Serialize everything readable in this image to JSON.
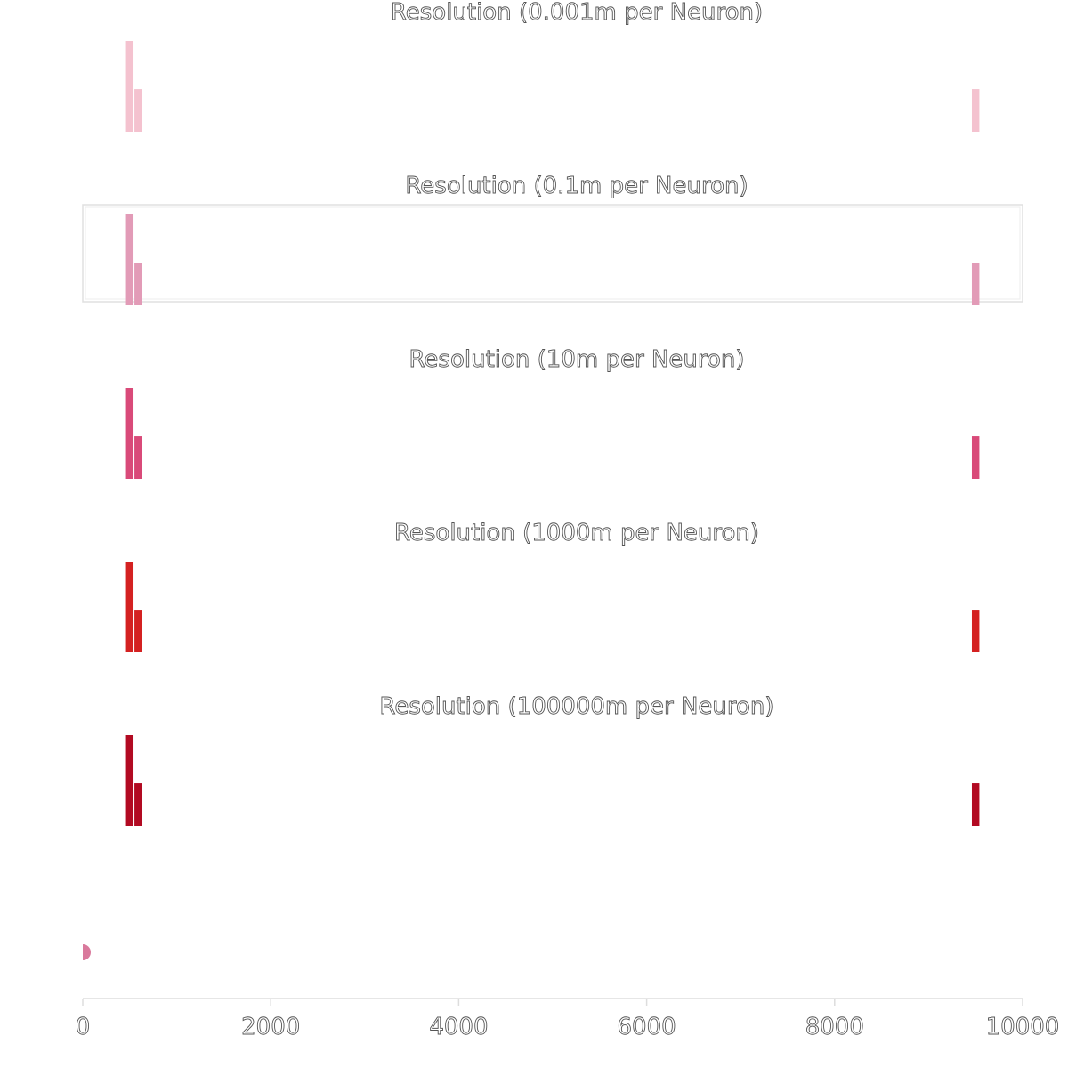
{
  "chart_data": {
    "type": "bar",
    "xlim": [
      0,
      10000
    ],
    "x_ticks": [
      0,
      2000,
      4000,
      6000,
      8000,
      10000
    ],
    "bar_width": 80,
    "panels": [
      {
        "title": "Resolution (0.001m per Neuron)",
        "color": "#f4c2cf",
        "bars": [
          {
            "x": 500,
            "y": 1.0
          },
          {
            "x": 590,
            "y": 0.47
          },
          {
            "x": 9500,
            "y": 0.47
          }
        ]
      },
      {
        "title": "Resolution (0.1m per Neuron)",
        "color": "#e29bb7",
        "bars": [
          {
            "x": 500,
            "y": 1.0
          },
          {
            "x": 590,
            "y": 0.47
          },
          {
            "x": 9500,
            "y": 0.47
          }
        ]
      },
      {
        "title": "Resolution (10m per Neuron)",
        "color": "#d94a79",
        "bars": [
          {
            "x": 500,
            "y": 1.0
          },
          {
            "x": 590,
            "y": 0.47
          },
          {
            "x": 9500,
            "y": 0.47
          }
        ]
      },
      {
        "title": "Resolution (1000m per Neuron)",
        "color": "#d42121",
        "bars": [
          {
            "x": 500,
            "y": 1.0
          },
          {
            "x": 590,
            "y": 0.47
          },
          {
            "x": 9500,
            "y": 0.47
          }
        ]
      },
      {
        "title": "Resolution (100000m per Neuron)",
        "color": "#b20a22",
        "bars": [
          {
            "x": 500,
            "y": 1.0
          },
          {
            "x": 590,
            "y": 0.47
          },
          {
            "x": 9500,
            "y": 0.47
          }
        ]
      }
    ],
    "marker": {
      "x": 0,
      "color": "#d9799c"
    },
    "highlighted_panel": 1,
    "grid": false
  }
}
